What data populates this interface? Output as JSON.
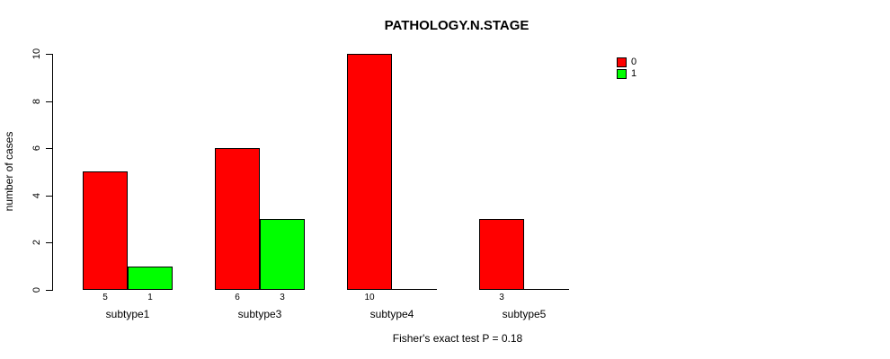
{
  "title": "PATHOLOGY.N.STAGE",
  "caption": "Fisher's exact test P = 0.18",
  "ylabel": "number of cases",
  "legend": {
    "entries": [
      {
        "label": "0",
        "color": "#ff0000"
      },
      {
        "label": "1",
        "color": "#00ff00"
      }
    ]
  },
  "chart_data": {
    "type": "bar",
    "title": "PATHOLOGY.N.STAGE",
    "xlabel": "",
    "ylabel": "number of cases",
    "categories": [
      "subtype1",
      "subtype3",
      "subtype4",
      "subtype5"
    ],
    "series": [
      {
        "name": "0",
        "color": "#ff0000",
        "values": [
          5,
          6,
          10,
          3
        ]
      },
      {
        "name": "1",
        "color": "#00ff00",
        "values": [
          1,
          3,
          0,
          0
        ]
      }
    ],
    "bar_value_labels": [
      [
        "5",
        "1"
      ],
      [
        "6",
        "3"
      ],
      [
        "10",
        ""
      ],
      [
        "3",
        ""
      ]
    ],
    "yticks": [
      0,
      2,
      4,
      6,
      8,
      10
    ],
    "ylim": [
      0,
      10
    ],
    "grid": false,
    "legend_position": "top-right",
    "annotation": "Fisher's exact test P = 0.18"
  }
}
